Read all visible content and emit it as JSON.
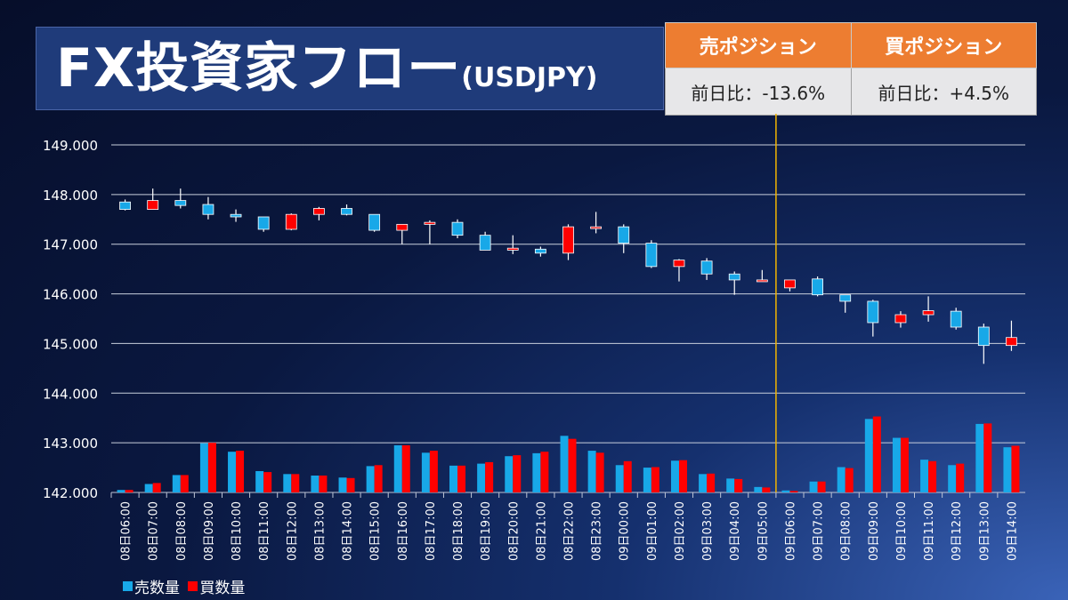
{
  "title": {
    "main": "FX投資家フロー",
    "sub": "(USDJPY)"
  },
  "positions": {
    "sell_header": "売ポジション",
    "buy_header": "買ポジション",
    "sell_change": "前日比：-13.6%",
    "buy_change": "前日比：+4.5%"
  },
  "colors": {
    "sell": "#18a8e8",
    "buy": "#ff0000",
    "up_candle": "#ff0000",
    "down_candle": "#18a8e8",
    "marker": "#f2b400",
    "header": "#ed7d31"
  },
  "legend": {
    "sell": "売数量",
    "buy": "買数量"
  },
  "chart_data": {
    "type": "candlestick+bar",
    "y_ticks": [
      "149.000",
      "148.000",
      "147.000",
      "146.000",
      "145.000",
      "144.000",
      "143.000",
      "142.000"
    ],
    "ylim": [
      142,
      149
    ],
    "grid": true,
    "legend_position": "bottom-left",
    "vertical_marker_category": "09日06:00",
    "categories": [
      "08日06:00",
      "08日07:00",
      "08日08:00",
      "08日09:00",
      "08日10:00",
      "08日11:00",
      "08日12:00",
      "08日13:00",
      "08日14:00",
      "08日15:00",
      "08日16:00",
      "08日17:00",
      "08日18:00",
      "08日19:00",
      "08日20:00",
      "08日21:00",
      "08日22:00",
      "08日23:00",
      "09日00:00",
      "09日01:00",
      "09日02:00",
      "09日03:00",
      "09日04:00",
      "09日05:00",
      "09日06:00",
      "09日07:00",
      "09日08:00",
      "09日09:00",
      "09日10:00",
      "09日11:00",
      "09日12:00",
      "09日13:00",
      "09日14:00"
    ],
    "candles": [
      [
        147.85,
        147.9,
        147.68,
        147.7
      ],
      [
        147.7,
        148.12,
        147.7,
        147.88
      ],
      [
        147.88,
        148.12,
        147.72,
        147.78
      ],
      [
        147.8,
        147.95,
        147.5,
        147.6
      ],
      [
        147.6,
        147.7,
        147.45,
        147.55
      ],
      [
        147.55,
        147.55,
        147.25,
        147.3
      ],
      [
        147.3,
        147.62,
        147.28,
        147.6
      ],
      [
        147.6,
        147.75,
        147.48,
        147.72
      ],
      [
        147.72,
        147.8,
        147.58,
        147.6
      ],
      [
        147.6,
        147.6,
        147.25,
        147.28
      ],
      [
        147.28,
        147.4,
        147.0,
        147.4
      ],
      [
        147.4,
        147.48,
        147.0,
        147.44
      ],
      [
        147.44,
        147.5,
        147.12,
        147.18
      ],
      [
        147.18,
        147.25,
        146.88,
        146.88
      ],
      [
        146.88,
        147.18,
        146.8,
        146.92
      ],
      [
        146.9,
        146.95,
        146.75,
        146.82
      ],
      [
        146.82,
        147.4,
        146.68,
        147.35
      ],
      [
        147.32,
        147.65,
        147.22,
        147.35
      ],
      [
        147.35,
        147.4,
        146.82,
        147.02
      ],
      [
        147.02,
        147.08,
        146.52,
        146.55
      ],
      [
        146.55,
        146.7,
        146.25,
        146.68
      ],
      [
        146.66,
        146.72,
        146.28,
        146.4
      ],
      [
        146.4,
        146.45,
        145.98,
        146.28
      ],
      [
        146.28,
        146.48,
        146.28,
        146.28
      ],
      [
        146.12,
        146.28,
        146.05,
        146.28
      ],
      [
        146.3,
        146.35,
        145.95,
        145.98
      ],
      [
        145.98,
        145.98,
        145.62,
        145.85
      ],
      [
        145.85,
        145.88,
        145.14,
        145.42
      ],
      [
        145.42,
        145.65,
        145.32,
        145.58
      ],
      [
        145.58,
        145.95,
        145.44,
        145.66
      ],
      [
        145.65,
        145.72,
        145.28,
        145.33
      ],
      [
        145.33,
        145.4,
        144.59,
        144.96
      ],
      [
        144.96,
        145.46,
        144.85,
        145.12
      ]
    ],
    "series": [
      {
        "name": "売数量",
        "values": [
          142.05,
          142.17,
          142.35,
          142.99,
          142.82,
          142.43,
          142.37,
          142.34,
          142.3,
          142.53,
          142.95,
          142.8,
          142.54,
          142.58,
          142.73,
          142.79,
          143.14,
          142.84,
          142.55,
          142.5,
          142.64,
          142.37,
          142.28,
          142.11,
          142.04,
          142.22,
          142.51,
          143.48,
          143.1,
          142.66,
          142.55,
          143.38,
          142.91
        ]
      },
      {
        "name": "買数量",
        "values": [
          142.05,
          142.19,
          142.35,
          143.0,
          142.84,
          142.41,
          142.37,
          142.34,
          142.29,
          142.55,
          142.95,
          142.84,
          142.54,
          142.61,
          142.75,
          142.82,
          143.08,
          142.8,
          142.63,
          142.51,
          142.65,
          142.38,
          142.27,
          142.1,
          142.03,
          142.22,
          142.49,
          143.53,
          143.1,
          142.63,
          142.58,
          143.39,
          142.94
        ]
      }
    ]
  }
}
